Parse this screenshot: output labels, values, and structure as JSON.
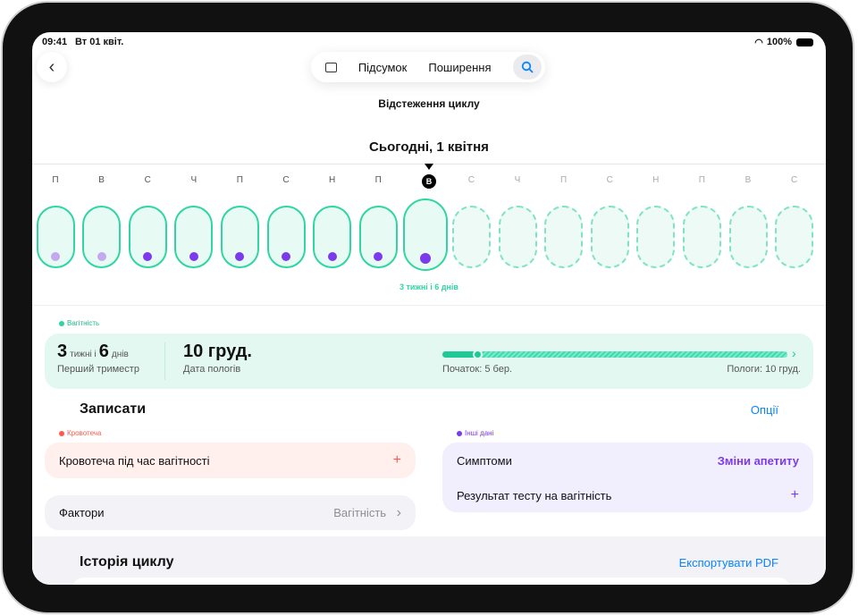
{
  "status": {
    "time": "09:41",
    "date": "Вт 01 квіт.",
    "battery": "100%"
  },
  "nav": {
    "tabs": [
      "Підсумок",
      "Поширення"
    ]
  },
  "header": {
    "title": "Відстеження циклу",
    "today": "Сьогодні, 1 квітня"
  },
  "calendar": {
    "days": [
      "П",
      "В",
      "С",
      "Ч",
      "П",
      "С",
      "Н",
      "П",
      "В",
      "С",
      "Ч",
      "П",
      "С",
      "Н",
      "П",
      "В",
      "С"
    ],
    "today_index": 8,
    "dot_light": [
      0,
      1
    ],
    "caption": "3 тижні і 6 днів"
  },
  "pregnancy": {
    "label": "Вагітність",
    "weeks": "3",
    "weeks_unit": "тижні і",
    "days": "6",
    "days_unit": "днів",
    "trimester": "Перший триместр",
    "due": "10 груд.",
    "due_label": "Дата пологів",
    "start": "Початок: 5 бер.",
    "end": "Пологи: 10 груд.",
    "progress_percent": 10
  },
  "record": {
    "title": "Записати",
    "options": "Опції",
    "bleeding_label": "Кровотеча",
    "bleeding_item": "Кровотеча під час вагітності",
    "factors": "Фактори",
    "factors_value": "Вагітність",
    "other_label": "Інші дані",
    "symptoms": "Симптоми",
    "symptoms_value": "Зміни апетиту",
    "test": "Результат тесту на вагітність"
  },
  "history": {
    "title": "Історія циклу",
    "export": "Експортувати PDF"
  },
  "colors": {
    "green": "#2fd6a3",
    "purple": "#7c3aed",
    "red": "#ff5a4f",
    "blue": "#0a84ff"
  }
}
